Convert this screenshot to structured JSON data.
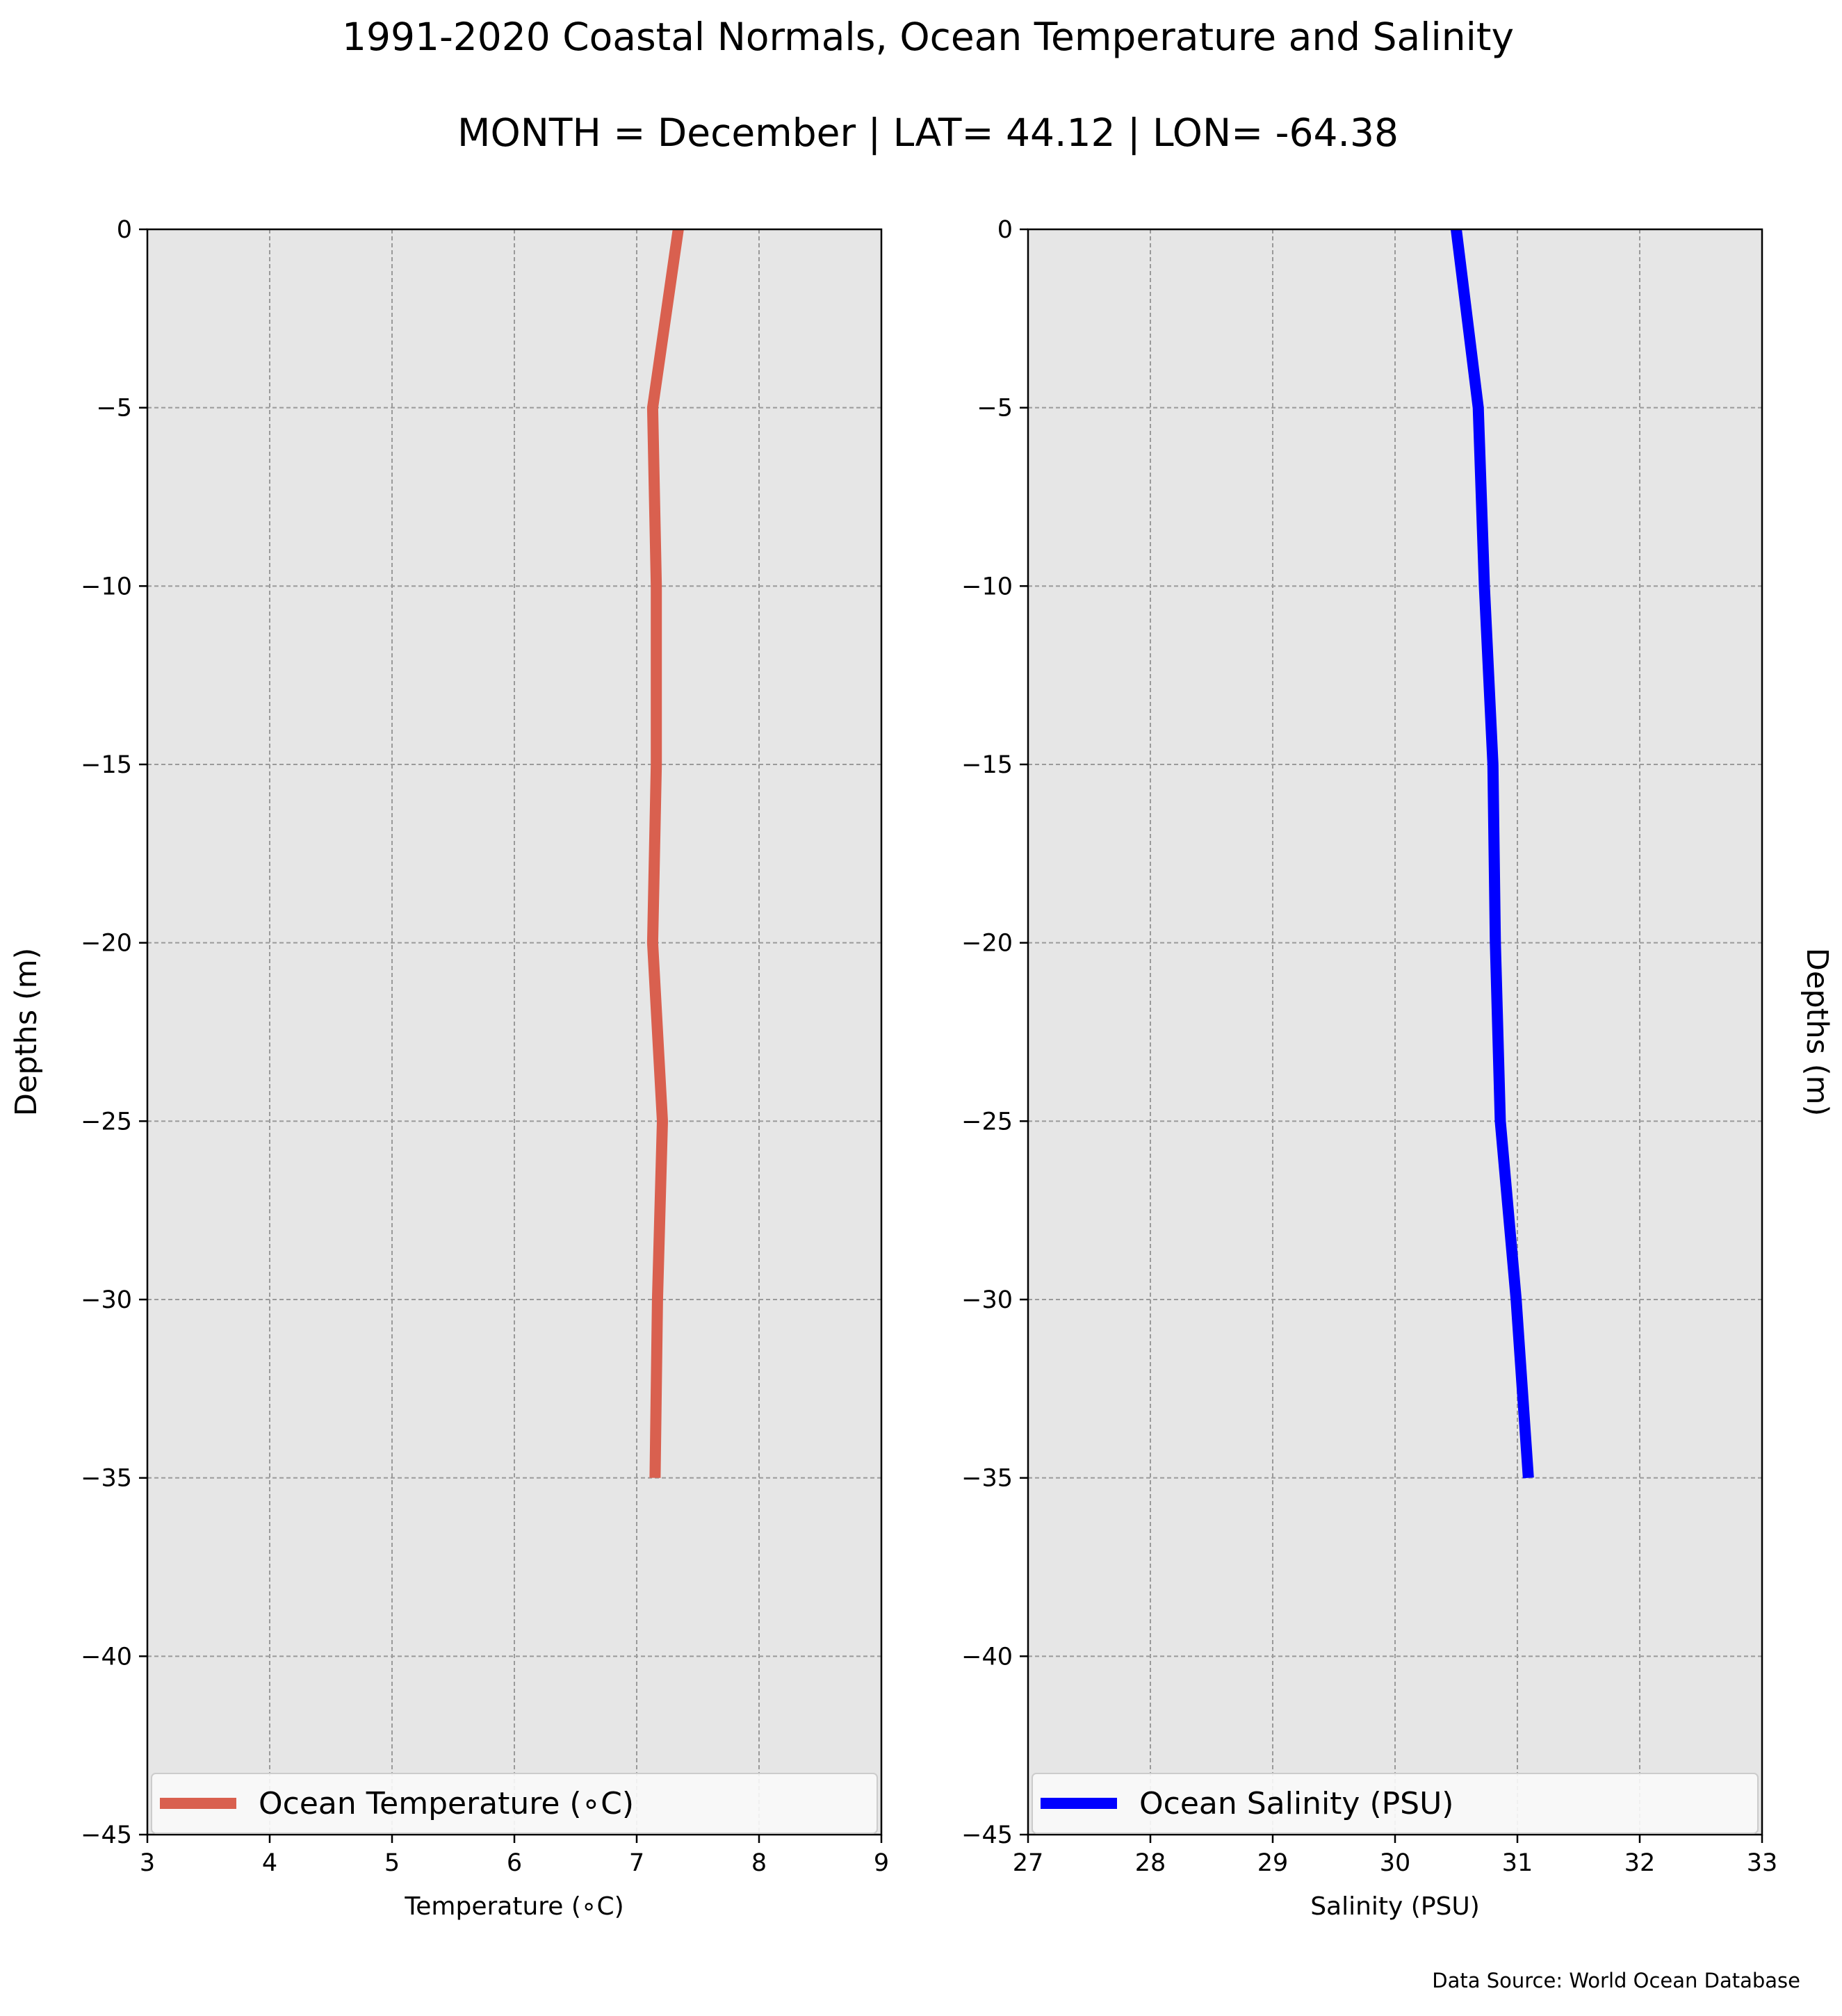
{
  "figure": {
    "title": "1991-2020 Coastal Normals, Ocean Temperature and Salinity",
    "subtitle": "MONTH = December | LAT= 44.12 | LON= -64.38",
    "source_note": "Data Source: World Ocean Database"
  },
  "chart_data": [
    {
      "type": "line",
      "orientation": "vertical-profile",
      "xlabel": "Temperature (∘C)",
      "ylabel": "Depths (m)",
      "xlim": [
        3,
        9
      ],
      "ylim": [
        -45,
        0
      ],
      "xticks": [
        3,
        4,
        5,
        6,
        7,
        8,
        9
      ],
      "yticks": [
        0,
        -5,
        -10,
        -15,
        -20,
        -25,
        -30,
        -35,
        -40,
        -45
      ],
      "grid": true,
      "legend_position": "lower center",
      "series": [
        {
          "name": "Ocean Temperature (∘C)",
          "color": "#d9604f",
          "x": [
            7.34,
            7.13,
            7.16,
            7.16,
            7.13,
            7.21,
            7.17,
            7.15
          ],
          "y": [
            0,
            -5,
            -10,
            -15,
            -20,
            -25,
            -30,
            -35
          ]
        }
      ]
    },
    {
      "type": "line",
      "orientation": "vertical-profile",
      "xlabel": "Salinity (PSU)",
      "ylabel": "Depths (m)",
      "xlim": [
        27,
        33
      ],
      "ylim": [
        -45,
        0
      ],
      "xticks": [
        27,
        28,
        29,
        30,
        31,
        32,
        33
      ],
      "yticks": [
        0,
        -5,
        -10,
        -15,
        -20,
        -25,
        -30,
        -35,
        -40,
        -45
      ],
      "grid": true,
      "legend_position": "lower center",
      "series": [
        {
          "name": "Ocean Salinity (PSU)",
          "color": "#0000ff",
          "x": [
            30.5,
            30.68,
            30.73,
            30.8,
            30.82,
            30.86,
            30.99,
            31.09
          ],
          "y": [
            0,
            -5,
            -10,
            -15,
            -20,
            -25,
            -30,
            -35
          ]
        }
      ]
    }
  ]
}
